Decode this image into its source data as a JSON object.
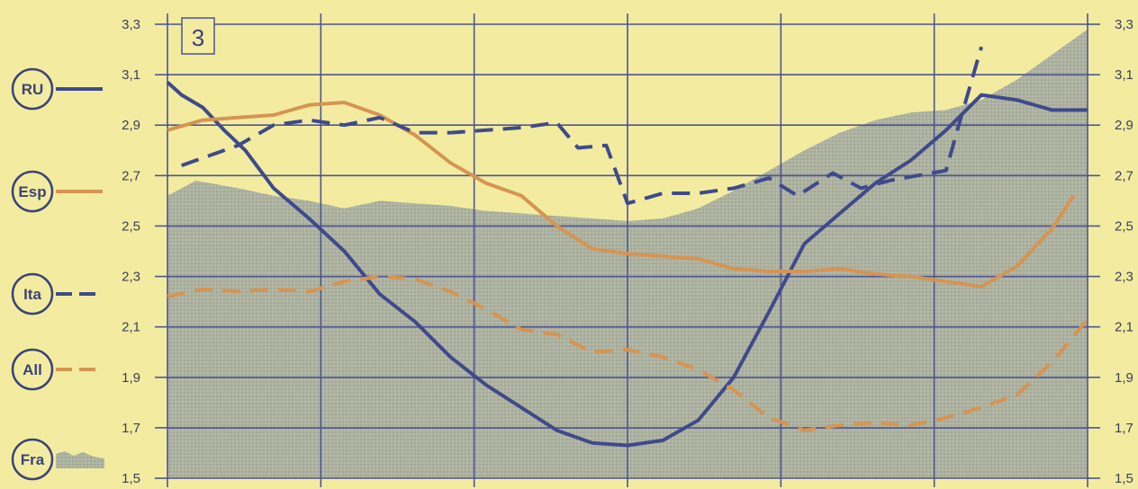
{
  "colors": {
    "background": "#f3eca0",
    "grid": "#4b5593",
    "RU": "#3f4a8c",
    "Esp": "#d69453",
    "Ita": "#3f4a8c",
    "All": "#d69453",
    "Fra": "#a7ab99",
    "text": "#3a3f5a"
  },
  "chart_data": {
    "type": "line",
    "panel_label": "3",
    "ylim": [
      1.5,
      3.3
    ],
    "y_ticks": [
      "1,5",
      "1,7",
      "1,9",
      "2,1",
      "2,3",
      "2,5",
      "2,7",
      "2,9",
      "3,1",
      "3,3"
    ],
    "y_tick_values": [
      1.5,
      1.7,
      1.9,
      2.1,
      2.3,
      2.5,
      2.7,
      2.9,
      3.1,
      3.3
    ],
    "xlim": [
      0,
      6.5
    ],
    "x_grid_count": 6,
    "grid": true,
    "legend_position": "left",
    "series": [
      {
        "name": "RU",
        "style": "solid",
        "kind": "line",
        "x": [
          0,
          0.1,
          0.25,
          0.4,
          0.55,
          0.75,
          1.0,
          1.25,
          1.5,
          1.75,
          2.0,
          2.25,
          2.5,
          2.75,
          3.0,
          3.25,
          3.5,
          3.75,
          4.0,
          4.25,
          4.5,
          4.75,
          5.0,
          5.25,
          5.5,
          5.75,
          6.0,
          6.25,
          6.5
        ],
        "y": [
          3.07,
          3.02,
          2.97,
          2.88,
          2.8,
          2.65,
          2.53,
          2.4,
          2.23,
          2.12,
          1.98,
          1.87,
          1.78,
          1.69,
          1.64,
          1.63,
          1.65,
          1.73,
          1.9,
          2.16,
          2.43,
          2.55,
          2.67,
          2.76,
          2.88,
          3.02,
          3.0,
          2.96,
          2.96
        ]
      },
      {
        "name": "Esp",
        "style": "solid",
        "kind": "line",
        "x": [
          0,
          0.25,
          0.5,
          0.75,
          1.0,
          1.25,
          1.5,
          1.75,
          2.0,
          2.25,
          2.5,
          2.75,
          3.0,
          3.25,
          3.5,
          3.75,
          4.0,
          4.25,
          4.5,
          4.75,
          5.0,
          5.25,
          5.5,
          5.75,
          6.0,
          6.25,
          6.4
        ],
        "y": [
          2.88,
          2.92,
          2.93,
          2.94,
          2.98,
          2.99,
          2.94,
          2.86,
          2.75,
          2.67,
          2.62,
          2.5,
          2.41,
          2.39,
          2.38,
          2.37,
          2.33,
          2.32,
          2.32,
          2.33,
          2.31,
          2.3,
          2.28,
          2.26,
          2.34,
          2.49,
          2.62
        ]
      },
      {
        "name": "Ita",
        "style": "dashed",
        "kind": "line",
        "x": [
          0.1,
          0.3,
          0.5,
          0.75,
          1.0,
          1.25,
          1.5,
          1.75,
          2.0,
          2.25,
          2.5,
          2.75,
          2.9,
          3.1,
          3.25,
          3.5,
          3.75,
          4.0,
          4.25,
          4.45,
          4.7,
          4.9,
          5.1,
          5.3,
          5.5,
          5.6,
          5.75
        ],
        "y": [
          2.74,
          2.78,
          2.82,
          2.9,
          2.92,
          2.9,
          2.93,
          2.87,
          2.87,
          2.88,
          2.89,
          2.91,
          2.81,
          2.82,
          2.59,
          2.63,
          2.63,
          2.65,
          2.69,
          2.62,
          2.71,
          2.65,
          2.68,
          2.7,
          2.72,
          2.92,
          3.21
        ]
      },
      {
        "name": "All",
        "style": "dashed",
        "kind": "line",
        "x": [
          0,
          0.25,
          0.5,
          0.75,
          1.0,
          1.25,
          1.5,
          1.75,
          2.0,
          2.25,
          2.5,
          2.75,
          3.0,
          3.25,
          3.5,
          3.75,
          4.0,
          4.25,
          4.5,
          4.75,
          5.0,
          5.25,
          5.5,
          5.75,
          6.0,
          6.25,
          6.5
        ],
        "y": [
          2.22,
          2.25,
          2.24,
          2.25,
          2.24,
          2.28,
          2.3,
          2.29,
          2.24,
          2.17,
          2.09,
          2.07,
          2.0,
          2.01,
          1.98,
          1.93,
          1.85,
          1.74,
          1.69,
          1.71,
          1.72,
          1.71,
          1.74,
          1.78,
          1.83,
          1.96,
          2.13
        ]
      },
      {
        "name": "Fra",
        "style": "area",
        "kind": "area",
        "x": [
          0,
          0.2,
          0.5,
          0.75,
          1.0,
          1.25,
          1.5,
          1.75,
          2.0,
          2.25,
          2.5,
          2.75,
          3.0,
          3.25,
          3.5,
          3.75,
          4.0,
          4.25,
          4.5,
          4.75,
          5.0,
          5.25,
          5.5,
          5.75,
          6.0,
          6.25,
          6.5
        ],
        "y": [
          2.62,
          2.68,
          2.65,
          2.62,
          2.6,
          2.57,
          2.6,
          2.59,
          2.58,
          2.56,
          2.55,
          2.54,
          2.53,
          2.52,
          2.53,
          2.57,
          2.64,
          2.72,
          2.8,
          2.87,
          2.92,
          2.95,
          2.96,
          3.0,
          3.08,
          3.18,
          3.28
        ]
      }
    ]
  },
  "legend": [
    {
      "label": "RU",
      "style": "solid",
      "color_key": "RU"
    },
    {
      "label": "Esp",
      "style": "solid",
      "color_key": "Esp"
    },
    {
      "label": "Ita",
      "style": "dashed",
      "color_key": "Ita"
    },
    {
      "label": "All",
      "style": "dashed",
      "color_key": "All"
    },
    {
      "label": "Fra",
      "style": "area",
      "color_key": "Fra"
    }
  ]
}
